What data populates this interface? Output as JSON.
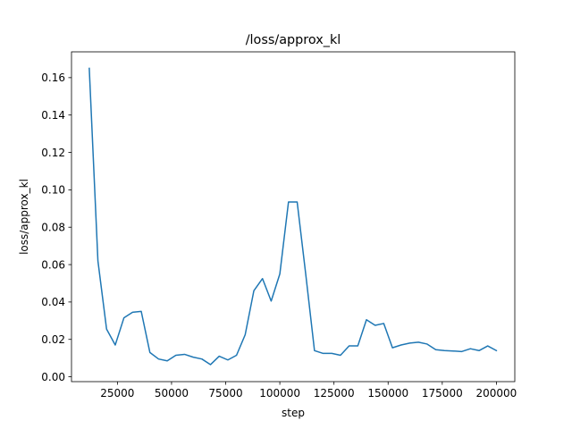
{
  "chart_data": {
    "type": "line",
    "title": "/loss/approx_kl",
    "xlabel": "step",
    "ylabel": "loss/approx_kl",
    "xlim": [
      3800,
      208500
    ],
    "ylim": [
      -0.0026,
      0.1738
    ],
    "grid": false,
    "xticks": [
      25000,
      50000,
      75000,
      100000,
      125000,
      150000,
      175000,
      200000
    ],
    "xtick_labels": [
      "25000",
      "50000",
      "75000",
      "100000",
      "125000",
      "150000",
      "175000",
      "200000"
    ],
    "yticks": [
      0.0,
      0.02,
      0.04,
      0.06,
      0.08,
      0.1,
      0.12,
      0.14,
      0.16
    ],
    "ytick_labels": [
      "0.00",
      "0.02",
      "0.04",
      "0.06",
      "0.08",
      "0.10",
      "0.12",
      "0.14",
      "0.16"
    ],
    "series": [
      {
        "color": "#1f77b4",
        "x": [
          12000,
          16000,
          20000,
          24000,
          28000,
          32000,
          36000,
          40000,
          44000,
          48000,
          52000,
          56000,
          60000,
          64000,
          68000,
          72000,
          76000,
          80000,
          84000,
          88000,
          92000,
          96000,
          100000,
          104000,
          108000,
          112000,
          116000,
          120000,
          124000,
          128000,
          132000,
          136000,
          140000,
          144000,
          148000,
          152000,
          156000,
          160000,
          164000,
          168000,
          172000,
          176000,
          180000,
          184000,
          188000,
          192000,
          196000,
          200000
        ],
        "y": [
          0.165,
          0.062,
          0.0255,
          0.017,
          0.0315,
          0.0345,
          0.035,
          0.013,
          0.0095,
          0.0085,
          0.0115,
          0.012,
          0.0105,
          0.0095,
          0.0065,
          0.011,
          0.009,
          0.0115,
          0.0225,
          0.046,
          0.0525,
          0.0405,
          0.055,
          0.0935,
          0.0935,
          0.0545,
          0.014,
          0.0125,
          0.0125,
          0.0115,
          0.0165,
          0.0165,
          0.0305,
          0.0275,
          0.0285,
          0.0155,
          0.017,
          0.018,
          0.0185,
          0.0175,
          0.0145,
          0.014,
          0.0138,
          0.0135,
          0.015,
          0.014,
          0.0165,
          0.014
        ]
      }
    ]
  }
}
